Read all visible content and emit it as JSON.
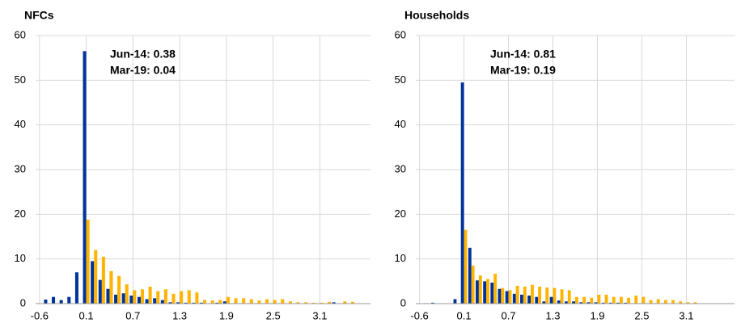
{
  "chart_data": [
    {
      "type": "bar",
      "title": "NFCs",
      "annotations": [
        "Jun-14: 0.38",
        "Mar-19: 0.04"
      ],
      "categories": [
        "-0.6",
        null,
        null,
        null,
        null,
        null,
        "0.1",
        null,
        null,
        null,
        null,
        null,
        "0.7",
        null,
        null,
        null,
        null,
        null,
        "1.3",
        null,
        null,
        null,
        null,
        null,
        "1.9",
        null,
        null,
        null,
        null,
        null,
        "2.5",
        null,
        null,
        null,
        null,
        null,
        "3.1",
        null,
        null,
        null,
        null,
        null,
        null
      ],
      "series": [
        {
          "color": "#003399",
          "values": [
            0,
            0.9,
            1.5,
            0.8,
            1.5,
            7,
            56.5,
            9.5,
            5.3,
            3.3,
            2,
            2.3,
            1.8,
            1.5,
            1,
            1.2,
            0.8,
            0.3,
            0.3,
            0.2,
            0.2,
            0.2,
            0.1,
            0.2,
            0.5,
            0.1,
            0.1,
            0.1,
            0.1,
            0.1,
            0.1,
            0,
            0,
            0,
            0,
            0,
            0,
            0,
            0.3,
            0,
            0,
            0,
            0
          ]
        },
        {
          "color": "#ffb400",
          "values": [
            0,
            0,
            0,
            0,
            0,
            0,
            18.8,
            12,
            10.5,
            7.3,
            6.2,
            4.3,
            3,
            3.2,
            3.8,
            2.8,
            3.2,
            2.2,
            2.8,
            3,
            2.5,
            0.8,
            0.7,
            0.8,
            1.5,
            1.2,
            1.2,
            1,
            0.7,
            1,
            0.8,
            1,
            0.5,
            0.3,
            0.3,
            0.2,
            0.2,
            0.4,
            0,
            0.5,
            0.4,
            0,
            0
          ]
        }
      ],
      "ylim": [
        0,
        60
      ],
      "yticks": [
        0,
        10,
        20,
        30,
        40,
        50,
        60
      ],
      "grid": true
    },
    {
      "type": "bar",
      "title": "Households",
      "annotations": [
        "Jun-14: 0.81",
        "Mar-19: 0.19"
      ],
      "categories": [
        "-0.6",
        null,
        null,
        null,
        null,
        null,
        "0.1",
        null,
        null,
        null,
        null,
        null,
        "0.7",
        null,
        null,
        null,
        null,
        null,
        "1.3",
        null,
        null,
        null,
        null,
        null,
        "1.9",
        null,
        null,
        null,
        null,
        null,
        "2.5",
        null,
        null,
        null,
        null,
        null,
        "3.1",
        null,
        null,
        null,
        null,
        null,
        null
      ],
      "series": [
        {
          "color": "#003399",
          "values": [
            0,
            0.1,
            0.2,
            0,
            0,
            1,
            49.5,
            12.5,
            5.2,
            5,
            4.7,
            3.3,
            2.8,
            2.2,
            2,
            1.8,
            1.5,
            0.5,
            1.5,
            0.7,
            0.5,
            0.5,
            0.3,
            0.3,
            0.3,
            0.2,
            0.2,
            0.2,
            0.2,
            0.1,
            0.1,
            0.1,
            0.1,
            0.1,
            0,
            0,
            0,
            0,
            0,
            0,
            0,
            0,
            0
          ]
        },
        {
          "color": "#ffb400",
          "values": [
            0,
            0,
            0,
            0,
            0,
            0,
            16.5,
            8.5,
            6.3,
            5.5,
            6.7,
            3.5,
            3,
            4,
            3.8,
            4.2,
            3.8,
            3.6,
            3.5,
            3.2,
            3,
            1.5,
            1.5,
            1.3,
            2,
            2,
            1.5,
            1.5,
            1.3,
            1.8,
            1.5,
            0.8,
            1,
            0.8,
            0.8,
            0.5,
            0.3,
            0.3,
            0,
            0,
            0,
            0,
            0
          ]
        }
      ],
      "ylim": [
        0,
        60
      ],
      "yticks": [
        0,
        10,
        20,
        30,
        40,
        50,
        60
      ],
      "grid": true
    }
  ]
}
